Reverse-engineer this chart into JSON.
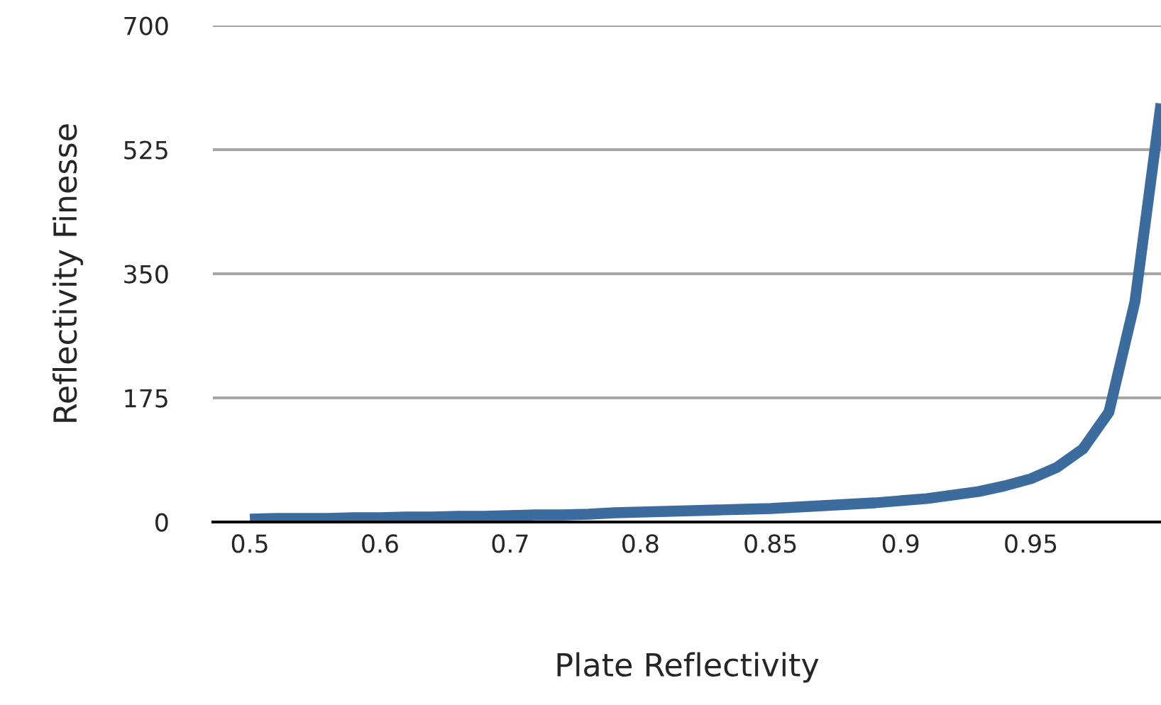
{
  "chart_data": {
    "type": "line",
    "xlabel": "Plate Reflectivity",
    "ylabel": "Reflectivity Finesse",
    "categories": [
      "0.5",
      null,
      null,
      null,
      null,
      "0.6",
      null,
      null,
      null,
      null,
      "0.7",
      null,
      null,
      null,
      null,
      "0.8",
      null,
      null,
      null,
      null,
      "0.85",
      null,
      null,
      null,
      null,
      "0.9",
      null,
      null,
      null,
      null,
      "0.95",
      null,
      null,
      null,
      null,
      null
    ],
    "series": [
      {
        "color": "#3c6b9e",
        "values": [
          4,
          5,
          5,
          5,
          6,
          6,
          7,
          7,
          8,
          8,
          9,
          10,
          10,
          11,
          13,
          14,
          15,
          16,
          17,
          18,
          19,
          21,
          23,
          25,
          27,
          30,
          33,
          38,
          43,
          51,
          61,
          77,
          103,
          155,
          311,
          590
        ]
      }
    ],
    "ylim": [
      0,
      700
    ],
    "yticks": [
      0,
      175,
      350,
      525,
      700
    ],
    "grid": "y",
    "marker": "none",
    "line_style": "solid"
  }
}
